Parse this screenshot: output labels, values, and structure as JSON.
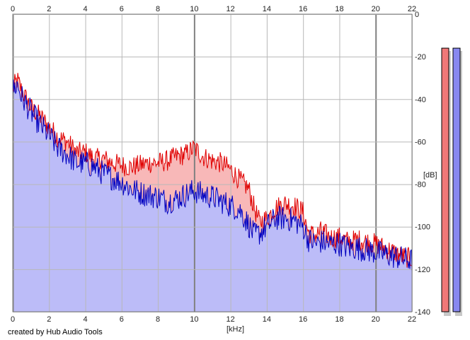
{
  "credit": "created by Hub Audio Tools",
  "x_unit_label": "[kHz]",
  "y_unit_label": "[dB]",
  "colors": {
    "left_channel": "#e00000",
    "right_channel": "#0000c0",
    "left_fill": "#f8b8b8",
    "right_fill": "#bcbcf8",
    "grid": "#b8b8b8",
    "grid_major": "#808080",
    "meter_left": "#f07878",
    "meter_right": "#8888f0"
  },
  "meters": {
    "left_level_db": -16,
    "right_level_db": -16
  },
  "chart_data": {
    "type": "area",
    "xlabel": "[kHz]",
    "ylabel": "[dB]",
    "xlim": [
      0,
      22
    ],
    "ylim": [
      -140,
      0
    ],
    "x_ticks": [
      0,
      2,
      4,
      6,
      8,
      10,
      12,
      14,
      16,
      18,
      20,
      22
    ],
    "y_ticks": [
      0,
      -20,
      -40,
      -60,
      -80,
      -100,
      -120,
      -140
    ],
    "y_tick_labels": [
      "0",
      "-20",
      "-40",
      "-60",
      "-80",
      "-100",
      "-120",
      "-140"
    ],
    "grid": true,
    "series": [
      {
        "color": "#e00000",
        "x": [
          0,
          0.25,
          0.5,
          1,
          1.5,
          2,
          2.5,
          3,
          3.5,
          4,
          4.5,
          5,
          5.5,
          6,
          6.5,
          7,
          7.5,
          8,
          8.5,
          9,
          9.5,
          10,
          10.5,
          11,
          11.5,
          12,
          12.5,
          13,
          13.3,
          13.6,
          14,
          14.5,
          15,
          15.5,
          16,
          16.3,
          16.7,
          17,
          17.5,
          18,
          18.5,
          19,
          19.5,
          20,
          20.5,
          21,
          21.5,
          22
        ],
        "values": [
          -35,
          -31,
          -36,
          -44,
          -48,
          -53,
          -58,
          -60,
          -65,
          -65,
          -68,
          -68,
          -70,
          -71,
          -72,
          -71,
          -70,
          -70,
          -69,
          -67,
          -66,
          -63,
          -67,
          -69,
          -70,
          -73,
          -78,
          -82,
          -91,
          -98,
          -96,
          -91,
          -89,
          -90,
          -93,
          -103,
          -104,
          -102,
          -105,
          -105,
          -107,
          -106,
          -107,
          -108,
          -110,
          -112,
          -114,
          -115
        ]
      },
      {
        "color": "#0000c0",
        "x": [
          0,
          0.25,
          0.5,
          1,
          1.5,
          2,
          2.5,
          3,
          3.5,
          4,
          4.5,
          5,
          5.5,
          6,
          6.5,
          7,
          7.5,
          8,
          8.5,
          9,
          9.5,
          10,
          10.5,
          11,
          11.5,
          12,
          12.5,
          13,
          13.3,
          13.6,
          14,
          14.5,
          15,
          15.5,
          16,
          16.3,
          16.7,
          17,
          17.5,
          18,
          18.5,
          19,
          19.5,
          20,
          20.5,
          21,
          21.5,
          22
        ],
        "values": [
          -36,
          -33,
          -39,
          -46,
          -52,
          -57,
          -63,
          -66,
          -70,
          -70,
          -72,
          -75,
          -77,
          -79,
          -82,
          -84,
          -85,
          -86,
          -88,
          -87,
          -85,
          -83,
          -85,
          -86,
          -88,
          -90,
          -92,
          -99,
          -104,
          -103,
          -100,
          -96,
          -96,
          -97,
          -100,
          -106,
          -108,
          -107,
          -108,
          -108,
          -110,
          -110,
          -111,
          -112,
          -113,
          -114,
          -115,
          -116
        ]
      }
    ]
  }
}
